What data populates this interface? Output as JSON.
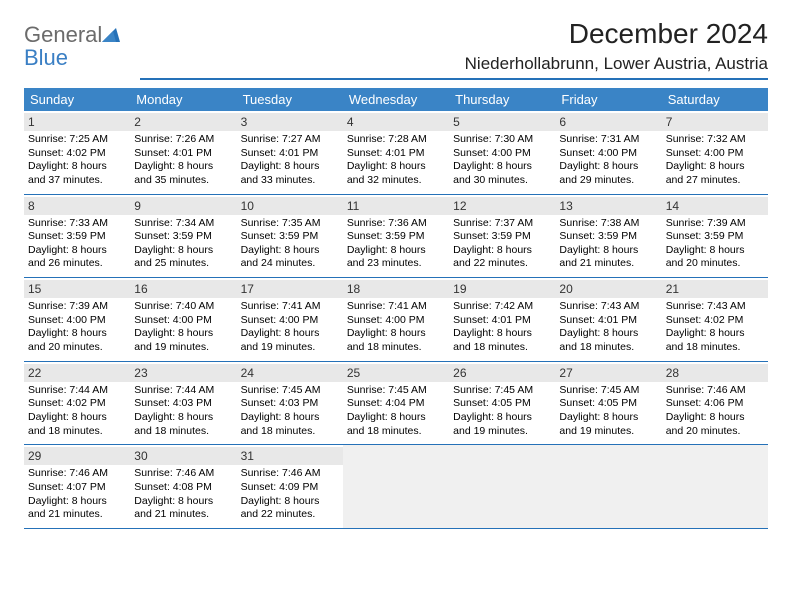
{
  "brand": {
    "word1": "General",
    "word2": "Blue"
  },
  "title": "December 2024",
  "location": "Niederhollabrunn, Lower Austria, Austria",
  "colors": {
    "header_bg": "#3a84c6",
    "header_text": "#ffffff",
    "daynum_bg": "#e8e8e8",
    "border": "#2571b8",
    "text": "#000000",
    "logo_gray": "#6b6b6b",
    "logo_blue": "#3a7fc4",
    "empty_bg": "#f0f0f0"
  },
  "daysOfWeek": [
    "Sunday",
    "Monday",
    "Tuesday",
    "Wednesday",
    "Thursday",
    "Friday",
    "Saturday"
  ],
  "weeks": [
    [
      {
        "n": "1",
        "sunrise": "Sunrise: 7:25 AM",
        "sunset": "Sunset: 4:02 PM",
        "day1": "Daylight: 8 hours",
        "day2": "and 37 minutes."
      },
      {
        "n": "2",
        "sunrise": "Sunrise: 7:26 AM",
        "sunset": "Sunset: 4:01 PM",
        "day1": "Daylight: 8 hours",
        "day2": "and 35 minutes."
      },
      {
        "n": "3",
        "sunrise": "Sunrise: 7:27 AM",
        "sunset": "Sunset: 4:01 PM",
        "day1": "Daylight: 8 hours",
        "day2": "and 33 minutes."
      },
      {
        "n": "4",
        "sunrise": "Sunrise: 7:28 AM",
        "sunset": "Sunset: 4:01 PM",
        "day1": "Daylight: 8 hours",
        "day2": "and 32 minutes."
      },
      {
        "n": "5",
        "sunrise": "Sunrise: 7:30 AM",
        "sunset": "Sunset: 4:00 PM",
        "day1": "Daylight: 8 hours",
        "day2": "and 30 minutes."
      },
      {
        "n": "6",
        "sunrise": "Sunrise: 7:31 AM",
        "sunset": "Sunset: 4:00 PM",
        "day1": "Daylight: 8 hours",
        "day2": "and 29 minutes."
      },
      {
        "n": "7",
        "sunrise": "Sunrise: 7:32 AM",
        "sunset": "Sunset: 4:00 PM",
        "day1": "Daylight: 8 hours",
        "day2": "and 27 minutes."
      }
    ],
    [
      {
        "n": "8",
        "sunrise": "Sunrise: 7:33 AM",
        "sunset": "Sunset: 3:59 PM",
        "day1": "Daylight: 8 hours",
        "day2": "and 26 minutes."
      },
      {
        "n": "9",
        "sunrise": "Sunrise: 7:34 AM",
        "sunset": "Sunset: 3:59 PM",
        "day1": "Daylight: 8 hours",
        "day2": "and 25 minutes."
      },
      {
        "n": "10",
        "sunrise": "Sunrise: 7:35 AM",
        "sunset": "Sunset: 3:59 PM",
        "day1": "Daylight: 8 hours",
        "day2": "and 24 minutes."
      },
      {
        "n": "11",
        "sunrise": "Sunrise: 7:36 AM",
        "sunset": "Sunset: 3:59 PM",
        "day1": "Daylight: 8 hours",
        "day2": "and 23 minutes."
      },
      {
        "n": "12",
        "sunrise": "Sunrise: 7:37 AM",
        "sunset": "Sunset: 3:59 PM",
        "day1": "Daylight: 8 hours",
        "day2": "and 22 minutes."
      },
      {
        "n": "13",
        "sunrise": "Sunrise: 7:38 AM",
        "sunset": "Sunset: 3:59 PM",
        "day1": "Daylight: 8 hours",
        "day2": "and 21 minutes."
      },
      {
        "n": "14",
        "sunrise": "Sunrise: 7:39 AM",
        "sunset": "Sunset: 3:59 PM",
        "day1": "Daylight: 8 hours",
        "day2": "and 20 minutes."
      }
    ],
    [
      {
        "n": "15",
        "sunrise": "Sunrise: 7:39 AM",
        "sunset": "Sunset: 4:00 PM",
        "day1": "Daylight: 8 hours",
        "day2": "and 20 minutes."
      },
      {
        "n": "16",
        "sunrise": "Sunrise: 7:40 AM",
        "sunset": "Sunset: 4:00 PM",
        "day1": "Daylight: 8 hours",
        "day2": "and 19 minutes."
      },
      {
        "n": "17",
        "sunrise": "Sunrise: 7:41 AM",
        "sunset": "Sunset: 4:00 PM",
        "day1": "Daylight: 8 hours",
        "day2": "and 19 minutes."
      },
      {
        "n": "18",
        "sunrise": "Sunrise: 7:41 AM",
        "sunset": "Sunset: 4:00 PM",
        "day1": "Daylight: 8 hours",
        "day2": "and 18 minutes."
      },
      {
        "n": "19",
        "sunrise": "Sunrise: 7:42 AM",
        "sunset": "Sunset: 4:01 PM",
        "day1": "Daylight: 8 hours",
        "day2": "and 18 minutes."
      },
      {
        "n": "20",
        "sunrise": "Sunrise: 7:43 AM",
        "sunset": "Sunset: 4:01 PM",
        "day1": "Daylight: 8 hours",
        "day2": "and 18 minutes."
      },
      {
        "n": "21",
        "sunrise": "Sunrise: 7:43 AM",
        "sunset": "Sunset: 4:02 PM",
        "day1": "Daylight: 8 hours",
        "day2": "and 18 minutes."
      }
    ],
    [
      {
        "n": "22",
        "sunrise": "Sunrise: 7:44 AM",
        "sunset": "Sunset: 4:02 PM",
        "day1": "Daylight: 8 hours",
        "day2": "and 18 minutes."
      },
      {
        "n": "23",
        "sunrise": "Sunrise: 7:44 AM",
        "sunset": "Sunset: 4:03 PM",
        "day1": "Daylight: 8 hours",
        "day2": "and 18 minutes."
      },
      {
        "n": "24",
        "sunrise": "Sunrise: 7:45 AM",
        "sunset": "Sunset: 4:03 PM",
        "day1": "Daylight: 8 hours",
        "day2": "and 18 minutes."
      },
      {
        "n": "25",
        "sunrise": "Sunrise: 7:45 AM",
        "sunset": "Sunset: 4:04 PM",
        "day1": "Daylight: 8 hours",
        "day2": "and 18 minutes."
      },
      {
        "n": "26",
        "sunrise": "Sunrise: 7:45 AM",
        "sunset": "Sunset: 4:05 PM",
        "day1": "Daylight: 8 hours",
        "day2": "and 19 minutes."
      },
      {
        "n": "27",
        "sunrise": "Sunrise: 7:45 AM",
        "sunset": "Sunset: 4:05 PM",
        "day1": "Daylight: 8 hours",
        "day2": "and 19 minutes."
      },
      {
        "n": "28",
        "sunrise": "Sunrise: 7:46 AM",
        "sunset": "Sunset: 4:06 PM",
        "day1": "Daylight: 8 hours",
        "day2": "and 20 minutes."
      }
    ],
    [
      {
        "n": "29",
        "sunrise": "Sunrise: 7:46 AM",
        "sunset": "Sunset: 4:07 PM",
        "day1": "Daylight: 8 hours",
        "day2": "and 21 minutes."
      },
      {
        "n": "30",
        "sunrise": "Sunrise: 7:46 AM",
        "sunset": "Sunset: 4:08 PM",
        "day1": "Daylight: 8 hours",
        "day2": "and 21 minutes."
      },
      {
        "n": "31",
        "sunrise": "Sunrise: 7:46 AM",
        "sunset": "Sunset: 4:09 PM",
        "day1": "Daylight: 8 hours",
        "day2": "and 22 minutes."
      },
      null,
      null,
      null,
      null
    ]
  ]
}
